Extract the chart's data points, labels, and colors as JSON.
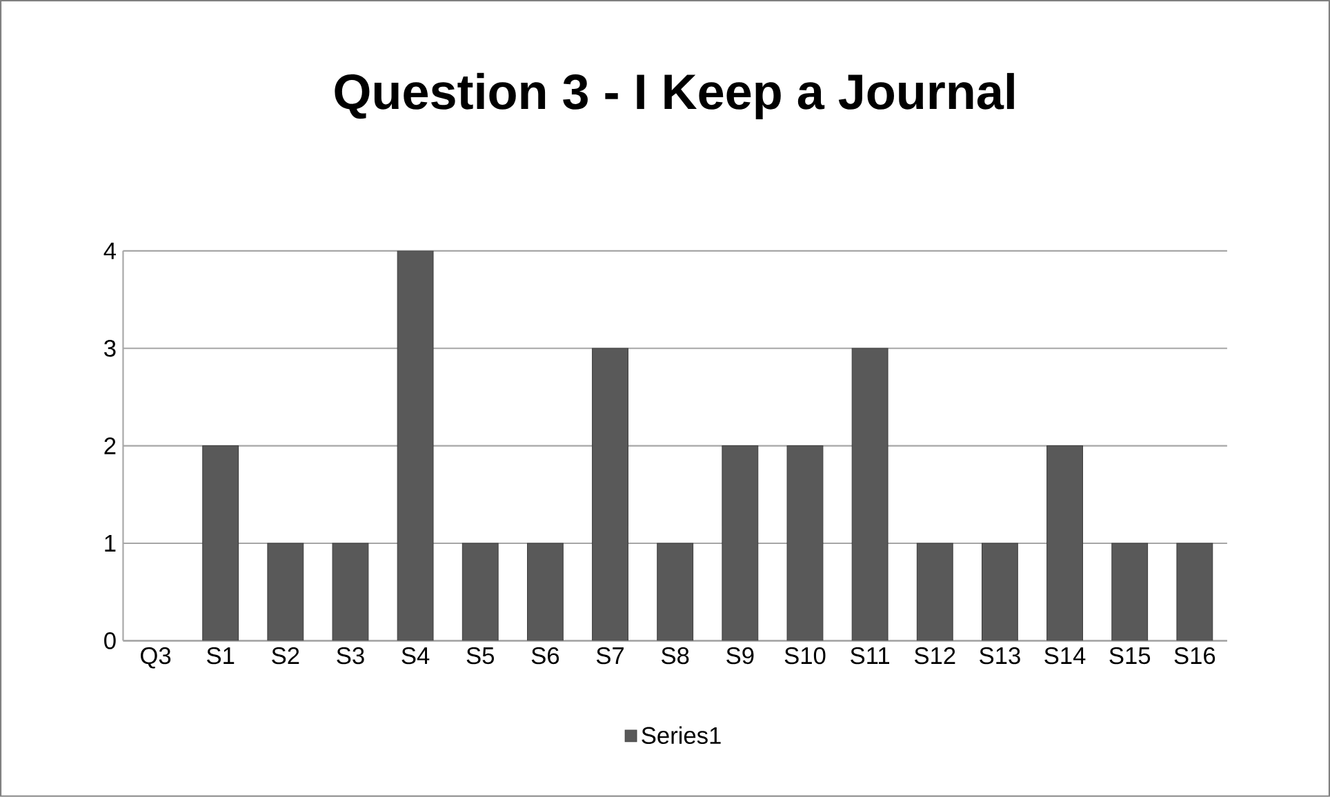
{
  "chart_data": {
    "type": "bar",
    "title": "Question 3 - I Keep a Journal",
    "categories": [
      "Q3",
      "S1",
      "S2",
      "S3",
      "S4",
      "S5",
      "S6",
      "S7",
      "S8",
      "S9",
      "S10",
      "S11",
      "S12",
      "S13",
      "S14",
      "S15",
      "S16"
    ],
    "series": [
      {
        "name": "Series1",
        "color": "#595959",
        "values": [
          null,
          2,
          1,
          1,
          4,
          1,
          1,
          3,
          1,
          2,
          2,
          3,
          1,
          1,
          2,
          1,
          1
        ]
      }
    ],
    "ylim": [
      0,
      4
    ],
    "yticks": [
      0,
      1,
      2,
      3,
      4
    ],
    "grid": "y",
    "legend": "bottom"
  }
}
